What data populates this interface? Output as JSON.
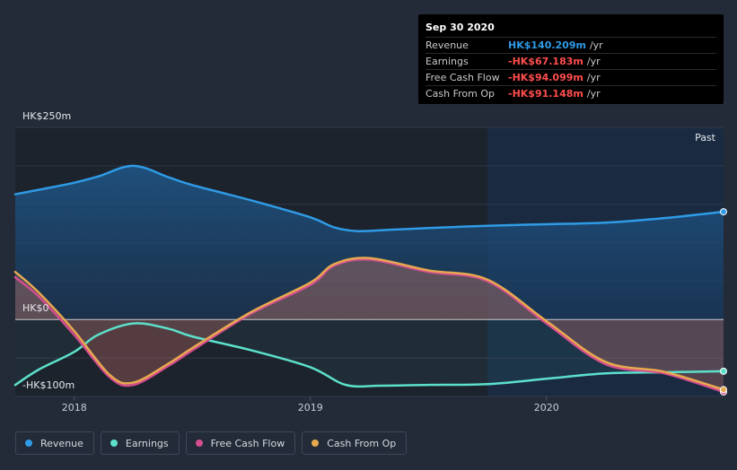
{
  "chart_data": {
    "type": "line",
    "title": "",
    "y_axis": {
      "labels": [
        "HK$250m",
        "HK$0",
        "-HK$100m"
      ],
      "ylim": [
        -100,
        250
      ]
    },
    "x_axis": {
      "ticks": [
        "2018",
        "2019",
        "2020"
      ],
      "tick_values": [
        2018.0,
        2019.0,
        2020.0
      ],
      "xlim": [
        2017.75,
        2020.75
      ]
    },
    "past_label": "Past",
    "past_start": 2019.75,
    "series": [
      {
        "key": "revenue",
        "name": "Revenue",
        "color": "#2f9be6",
        "points": [
          [
            2017.75,
            163
          ],
          [
            2017.87,
            170
          ],
          [
            2018.0,
            178
          ],
          [
            2018.1,
            186
          ],
          [
            2018.25,
            200
          ],
          [
            2018.4,
            185
          ],
          [
            2018.5,
            175
          ],
          [
            2018.75,
            155
          ],
          [
            2019.0,
            133
          ],
          [
            2019.1,
            120
          ],
          [
            2019.2,
            115
          ],
          [
            2019.35,
            117
          ],
          [
            2019.5,
            119
          ],
          [
            2019.75,
            122
          ],
          [
            2020.0,
            124
          ],
          [
            2020.25,
            126
          ],
          [
            2020.5,
            132
          ],
          [
            2020.75,
            140.209
          ]
        ]
      },
      {
        "key": "earnings",
        "name": "Earnings",
        "color": "#5ce0cb",
        "points": [
          [
            2017.75,
            -85
          ],
          [
            2017.85,
            -65
          ],
          [
            2018.0,
            -42
          ],
          [
            2018.1,
            -20
          ],
          [
            2018.25,
            -5
          ],
          [
            2018.4,
            -12
          ],
          [
            2018.5,
            -22
          ],
          [
            2018.75,
            -40
          ],
          [
            2019.0,
            -62
          ],
          [
            2019.15,
            -85
          ],
          [
            2019.3,
            -86
          ],
          [
            2019.5,
            -85
          ],
          [
            2019.75,
            -84
          ],
          [
            2020.0,
            -77
          ],
          [
            2020.25,
            -70
          ],
          [
            2020.5,
            -68.5
          ],
          [
            2020.75,
            -67.183
          ]
        ]
      },
      {
        "key": "fcf",
        "name": "Free Cash Flow",
        "color": "#d64d90",
        "points": [
          [
            2017.75,
            55
          ],
          [
            2017.85,
            30
          ],
          [
            2018.0,
            -20
          ],
          [
            2018.15,
            -75
          ],
          [
            2018.25,
            -85
          ],
          [
            2018.4,
            -60
          ],
          [
            2018.5,
            -40
          ],
          [
            2018.75,
            8
          ],
          [
            2019.0,
            45
          ],
          [
            2019.1,
            70
          ],
          [
            2019.25,
            78
          ],
          [
            2019.5,
            62
          ],
          [
            2019.75,
            50
          ],
          [
            2020.0,
            -5
          ],
          [
            2020.25,
            -58
          ],
          [
            2020.5,
            -70
          ],
          [
            2020.75,
            -94.099
          ]
        ]
      },
      {
        "key": "cfo",
        "name": "Cash From Op",
        "color": "#e6a94f",
        "points": [
          [
            2017.75,
            62
          ],
          [
            2017.85,
            35
          ],
          [
            2018.0,
            -15
          ],
          [
            2018.15,
            -72
          ],
          [
            2018.25,
            -82
          ],
          [
            2018.4,
            -57
          ],
          [
            2018.5,
            -37
          ],
          [
            2018.75,
            10
          ],
          [
            2019.0,
            48
          ],
          [
            2019.1,
            72
          ],
          [
            2019.25,
            80
          ],
          [
            2019.5,
            64
          ],
          [
            2019.75,
            52
          ],
          [
            2020.0,
            -2
          ],
          [
            2020.25,
            -55
          ],
          [
            2020.5,
            -68
          ],
          [
            2020.75,
            -91.148
          ]
        ]
      }
    ]
  },
  "tooltip": {
    "date": "Sep 30 2020",
    "rows": [
      {
        "label": "Revenue",
        "value": "HK$140.209m",
        "unit": "/yr",
        "color": "#2f9be6"
      },
      {
        "label": "Earnings",
        "value": "-HK$67.183m",
        "unit": "/yr",
        "color": "#ff4d4d"
      },
      {
        "label": "Free Cash Flow",
        "value": "-HK$94.099m",
        "unit": "/yr",
        "color": "#ff4d4d"
      },
      {
        "label": "Cash From Op",
        "value": "-HK$91.148m",
        "unit": "/yr",
        "color": "#ff4d4d"
      }
    ]
  },
  "legend": [
    {
      "label": "Revenue",
      "color": "#2f9be6"
    },
    {
      "label": "Earnings",
      "color": "#5ce0cb"
    },
    {
      "label": "Free Cash Flow",
      "color": "#d64d90"
    },
    {
      "label": "Cash From Op",
      "color": "#e6a94f"
    }
  ]
}
